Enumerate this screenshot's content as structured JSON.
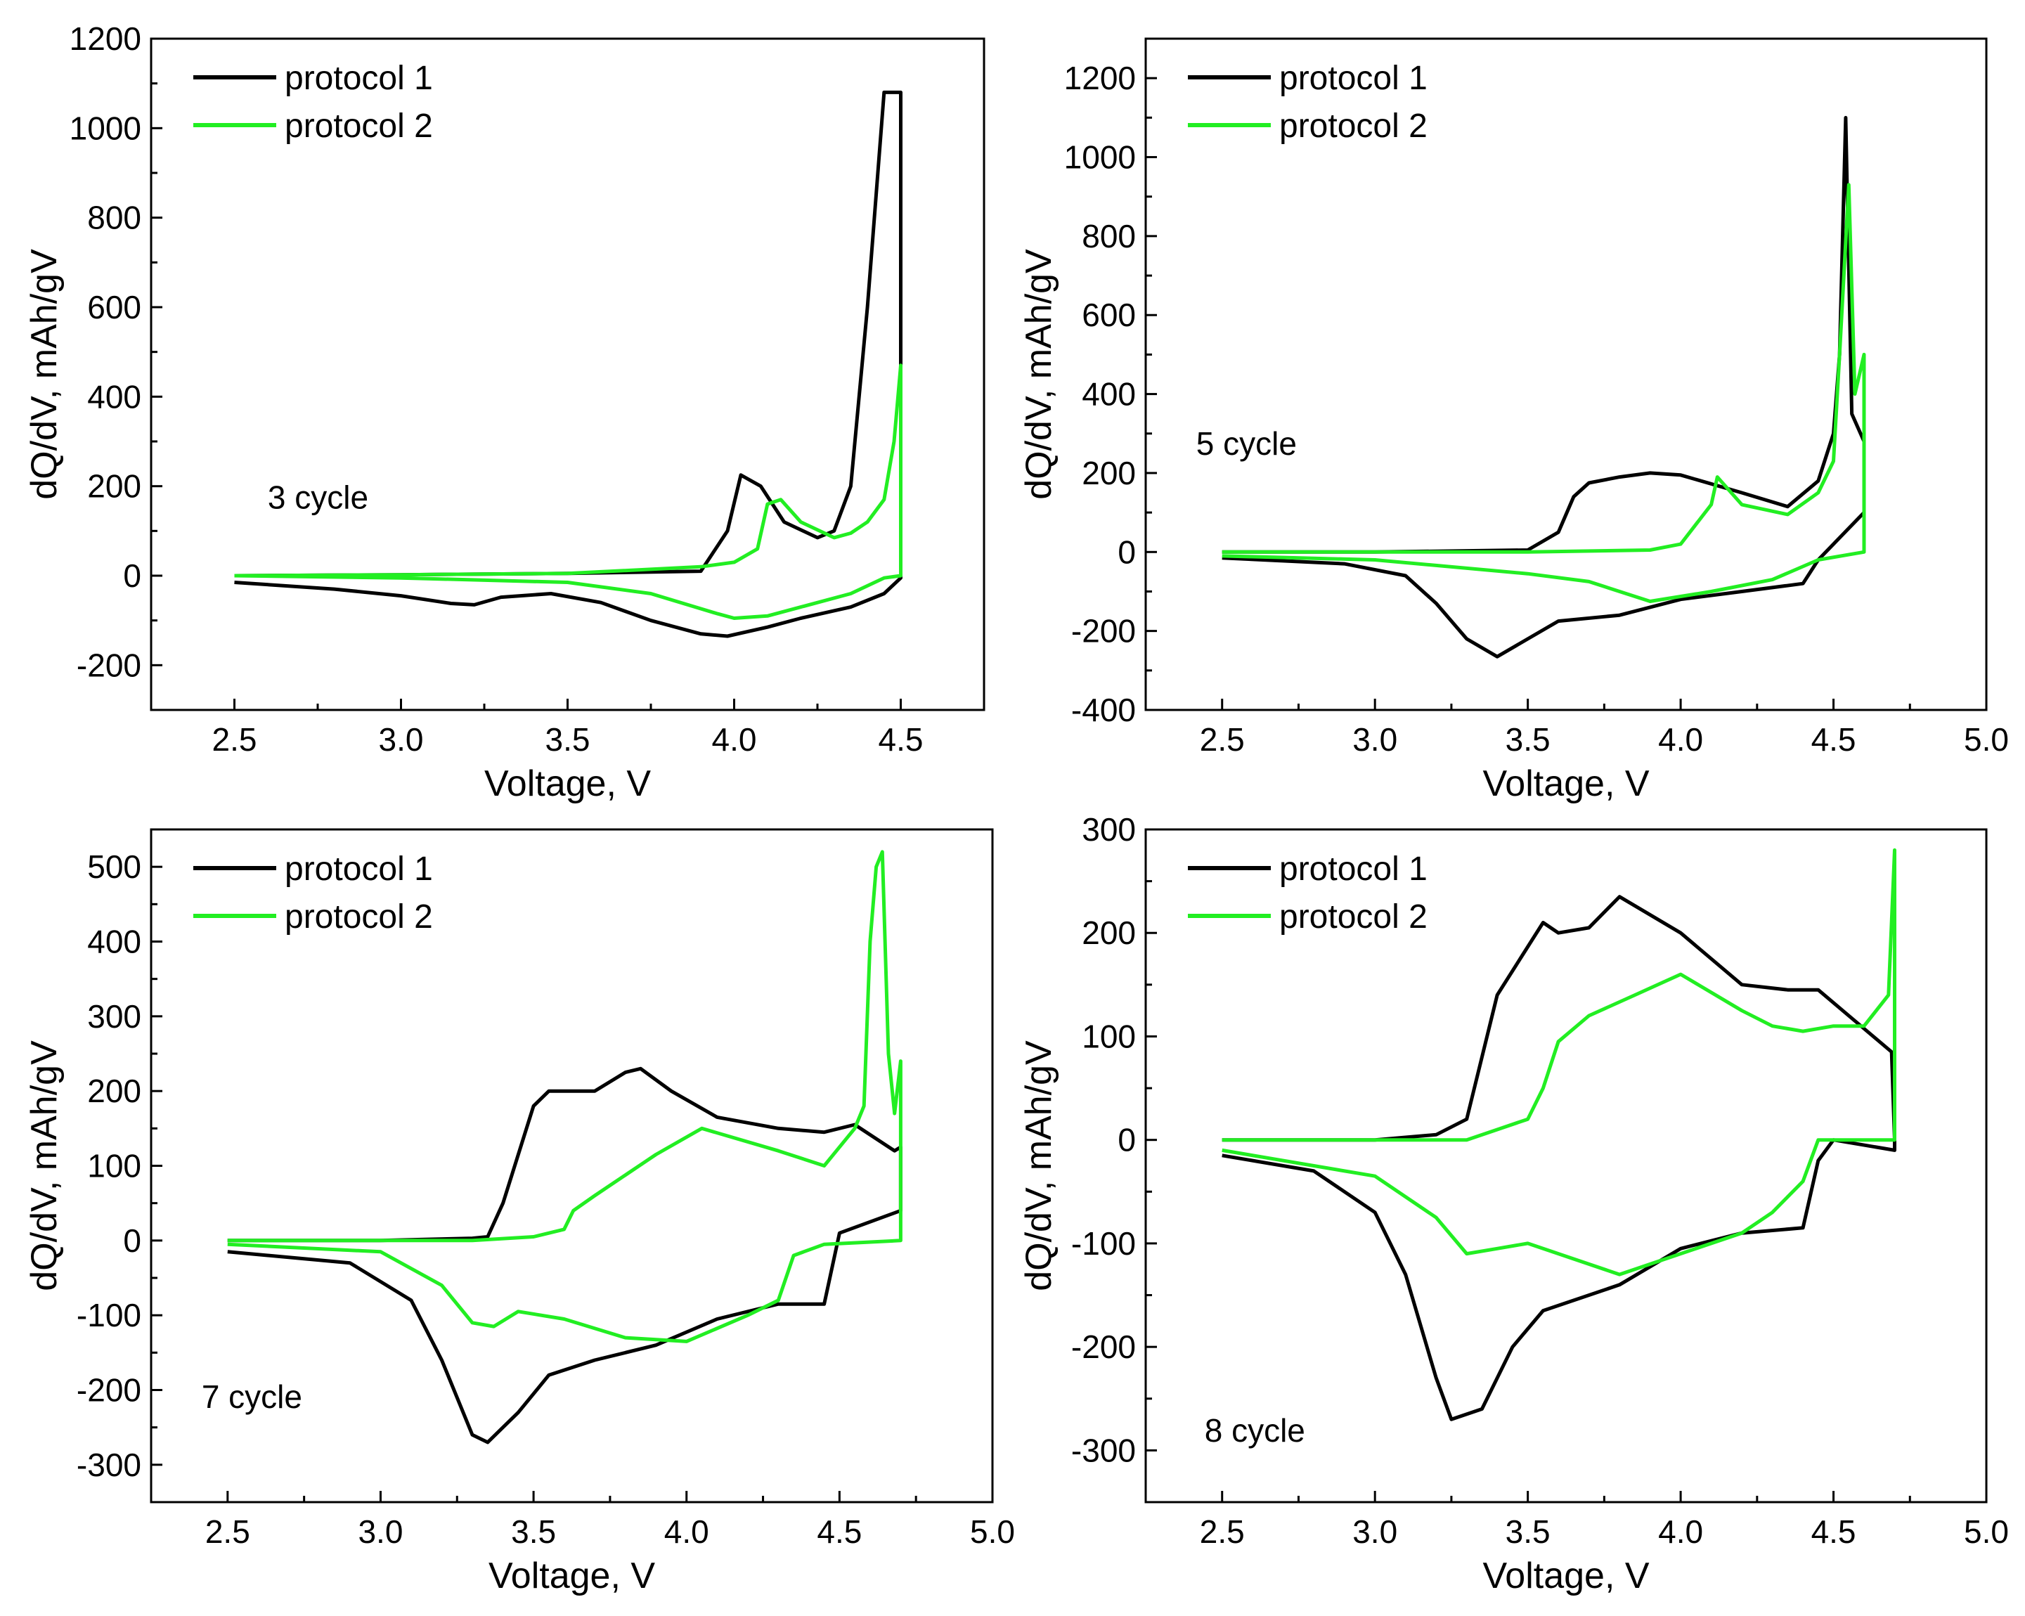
{
  "colors": {
    "protocol1": "#000000",
    "protocol2": "#22ee22",
    "cycle_label": "#1a1aa0"
  },
  "chart_data": [
    {
      "type": "line",
      "cycle_label": "3 cycle",
      "xlabel": "Voltage, V",
      "ylabel": "dQ/dV, mAh/gV",
      "xlim": [
        2.25,
        4.75
      ],
      "ylim": [
        -300,
        1200
      ],
      "xticks": [
        "2.5",
        "3.0",
        "3.5",
        "4.0",
        "4.5"
      ],
      "yticks": [
        "-200",
        "0",
        "200",
        "400",
        "600",
        "800",
        "1000",
        "1200"
      ],
      "legend": [
        "protocol 1",
        "protocol 2"
      ],
      "series": [
        {
          "name": "protocol 1",
          "x": [
            2.5,
            2.8,
            3.0,
            3.15,
            3.22,
            3.3,
            3.45,
            3.6,
            3.75,
            3.9,
            3.98,
            4.1,
            4.2,
            4.35,
            4.45,
            4.5,
            4.5,
            4.45,
            4.4,
            4.35,
            4.3,
            4.25,
            4.15,
            4.08,
            4.02,
            3.98,
            3.9,
            3.5,
            3.0,
            2.5
          ],
          "y": [
            -15,
            -30,
            -45,
            -62,
            -65,
            -48,
            -40,
            -60,
            -100,
            -130,
            -135,
            -115,
            -95,
            -70,
            -40,
            -5,
            1080,
            1080,
            600,
            200,
            100,
            85,
            120,
            200,
            225,
            100,
            10,
            5,
            2,
            0
          ]
        },
        {
          "name": "protocol 2",
          "x": [
            2.5,
            3.0,
            3.5,
            3.75,
            3.95,
            4.0,
            4.1,
            4.2,
            4.35,
            4.45,
            4.5,
            4.5,
            4.48,
            4.45,
            4.4,
            4.35,
            4.3,
            4.2,
            4.14,
            4.1,
            4.07,
            4.0,
            3.9,
            3.5,
            3.0,
            2.5
          ],
          "y": [
            0,
            -5,
            -15,
            -40,
            -85,
            -95,
            -90,
            -70,
            -40,
            -5,
            0,
            470,
            300,
            170,
            120,
            95,
            85,
            120,
            170,
            160,
            60,
            30,
            20,
            5,
            2,
            0
          ]
        }
      ]
    },
    {
      "type": "line",
      "cycle_label": "5 cycle",
      "xlabel": "Voltage, V",
      "ylabel": "dQ/dV, mAh/gV",
      "xlim": [
        2.25,
        5.0
      ],
      "ylim": [
        -400,
        1300
      ],
      "xticks": [
        "2.5",
        "3.0",
        "3.5",
        "4.0",
        "4.5",
        "5.0"
      ],
      "yticks": [
        "-400",
        "-200",
        "0",
        "200",
        "400",
        "600",
        "800",
        "1000",
        "1200"
      ],
      "legend": [
        "protocol 1",
        "protocol 2"
      ],
      "series": [
        {
          "name": "protocol 1",
          "x": [
            2.5,
            2.9,
            3.1,
            3.2,
            3.3,
            3.4,
            3.5,
            3.6,
            3.8,
            4.0,
            4.2,
            4.4,
            4.45,
            4.6,
            4.6,
            4.56,
            4.54,
            4.52,
            4.5,
            4.45,
            4.35,
            4.2,
            4.0,
            3.9,
            3.8,
            3.7,
            3.65,
            3.6,
            3.5,
            3.0,
            2.5
          ],
          "y": [
            -15,
            -30,
            -60,
            -130,
            -220,
            -265,
            -220,
            -175,
            -160,
            -120,
            -100,
            -80,
            -20,
            100,
            280,
            350,
            1100,
            500,
            300,
            180,
            115,
            150,
            195,
            200,
            190,
            175,
            140,
            50,
            5,
            0,
            0
          ]
        },
        {
          "name": "protocol 2",
          "x": [
            2.5,
            3.0,
            3.5,
            3.7,
            3.9,
            4.1,
            4.3,
            4.45,
            4.6,
            4.6,
            4.57,
            4.55,
            4.52,
            4.5,
            4.45,
            4.35,
            4.2,
            4.12,
            4.1,
            4.0,
            3.9,
            3.5,
            3.0,
            2.5
          ],
          "y": [
            -10,
            -20,
            -55,
            -75,
            -125,
            -100,
            -70,
            -20,
            0,
            500,
            400,
            930,
            500,
            230,
            150,
            95,
            120,
            190,
            120,
            20,
            5,
            0,
            0,
            0
          ]
        }
      ]
    },
    {
      "type": "line",
      "cycle_label": "7 cycle",
      "xlabel": "Voltage, V",
      "ylabel": "dQ/dV, mAh/gV",
      "xlim": [
        2.25,
        5.0
      ],
      "ylim": [
        -350,
        550
      ],
      "xticks": [
        "2.5",
        "3.0",
        "3.5",
        "4.0",
        "4.5",
        "5.0"
      ],
      "yticks": [
        "-300",
        "-200",
        "-100",
        "0",
        "100",
        "200",
        "300",
        "400",
        "500"
      ],
      "legend": [
        "protocol 1",
        "protocol 2"
      ],
      "series": [
        {
          "name": "protocol 1",
          "x": [
            2.5,
            2.9,
            3.1,
            3.2,
            3.3,
            3.35,
            3.45,
            3.55,
            3.7,
            3.9,
            4.1,
            4.3,
            4.45,
            4.5,
            4.7,
            4.7,
            4.68,
            4.55,
            4.45,
            4.3,
            4.1,
            3.95,
            3.85,
            3.8,
            3.7,
            3.55,
            3.5,
            3.4,
            3.35,
            3.3,
            3.0,
            2.5
          ],
          "y": [
            -15,
            -30,
            -80,
            -160,
            -260,
            -270,
            -230,
            -180,
            -160,
            -140,
            -105,
            -85,
            -85,
            10,
            40,
            125,
            120,
            155,
            145,
            150,
            165,
            200,
            230,
            225,
            200,
            200,
            180,
            50,
            5,
            3,
            0,
            0
          ]
        },
        {
          "name": "protocol 2",
          "x": [
            2.5,
            3.0,
            3.2,
            3.3,
            3.37,
            3.45,
            3.6,
            3.8,
            4.0,
            4.2,
            4.3,
            4.35,
            4.45,
            4.7,
            4.7,
            4.68,
            4.66,
            4.64,
            4.62,
            4.6,
            4.58,
            4.55,
            4.45,
            4.3,
            4.05,
            3.9,
            3.7,
            3.63,
            3.6,
            3.5,
            3.3,
            2.5
          ],
          "y": [
            -5,
            -15,
            -60,
            -110,
            -115,
            -95,
            -105,
            -130,
            -135,
            -100,
            -80,
            -20,
            -5,
            0,
            240,
            170,
            250,
            520,
            500,
            400,
            180,
            150,
            100,
            120,
            150,
            115,
            60,
            40,
            15,
            5,
            0,
            0
          ]
        }
      ]
    },
    {
      "type": "line",
      "cycle_label": "8 cycle",
      "xlabel": "Voltage, V",
      "ylabel": "dQ/dV, mAh/gV",
      "xlim": [
        2.25,
        5.0
      ],
      "ylim": [
        -350,
        300
      ],
      "xticks": [
        "2.5",
        "3.0",
        "3.5",
        "4.0",
        "4.5",
        "5.0"
      ],
      "yticks": [
        "-300",
        "-200",
        "-100",
        "0",
        "100",
        "200",
        "300"
      ],
      "legend": [
        "protocol 1",
        "protocol 2"
      ],
      "series": [
        {
          "name": "protocol 1",
          "x": [
            2.5,
            2.8,
            3.0,
            3.1,
            3.2,
            3.25,
            3.35,
            3.45,
            3.55,
            3.8,
            4.0,
            4.2,
            4.4,
            4.45,
            4.5,
            4.7,
            4.7,
            4.69,
            4.55,
            4.45,
            4.35,
            4.2,
            4.1,
            4.0,
            3.8,
            3.7,
            3.6,
            3.55,
            3.4,
            3.3,
            3.2,
            3.0,
            2.5
          ],
          "y": [
            -15,
            -30,
            -70,
            -130,
            -230,
            -270,
            -260,
            -200,
            -165,
            -140,
            -105,
            -90,
            -85,
            -20,
            0,
            -10,
            0,
            85,
            120,
            145,
            145,
            150,
            175,
            200,
            235,
            205,
            200,
            210,
            140,
            20,
            5,
            0,
            0
          ]
        },
        {
          "name": "protocol 2",
          "x": [
            2.5,
            3.0,
            3.2,
            3.3,
            3.4,
            3.5,
            3.6,
            3.8,
            4.0,
            4.2,
            4.3,
            4.4,
            4.45,
            4.7,
            4.7,
            4.68,
            4.6,
            4.5,
            4.4,
            4.3,
            4.2,
            4.0,
            3.85,
            3.7,
            3.6,
            3.55,
            3.5,
            3.4,
            3.3,
            2.5
          ],
          "y": [
            -10,
            -35,
            -75,
            -110,
            -105,
            -100,
            -110,
            -130,
            -110,
            -90,
            -70,
            -40,
            0,
            0,
            280,
            140,
            110,
            110,
            105,
            110,
            125,
            160,
            140,
            120,
            95,
            50,
            20,
            10,
            0,
            0
          ]
        }
      ]
    }
  ]
}
